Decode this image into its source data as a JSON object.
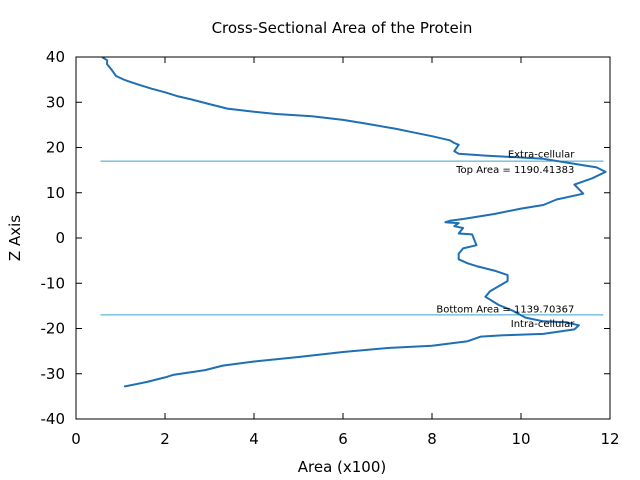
{
  "chart_data": {
    "type": "line",
    "title": "Cross-Sectional Area of the Protein",
    "xlabel": "Area (x100)",
    "ylabel": "Z Axis",
    "xlim": [
      0,
      12
    ],
    "ylim": [
      -40,
      40
    ],
    "xticks": [
      "0",
      "2",
      "4",
      "6",
      "8",
      "10",
      "12"
    ],
    "yticks": [
      "40",
      "30",
      "20",
      "10",
      "0",
      "-10",
      "-20",
      "-30",
      "-40"
    ],
    "grid": false,
    "line_color": "#1f6fb5",
    "ref_line_color": "#3aa3c9",
    "series": [
      {
        "x": [
          1.1,
          1.6,
          2.0,
          2.2,
          2.9,
          3.3,
          4.0,
          5.0,
          6.0,
          7.0,
          8.0,
          8.8,
          9.1,
          9.6,
          10.5,
          11.2,
          11.3,
          11.0,
          10.5,
          10.1,
          9.8,
          9.5,
          9.2,
          9.3,
          9.7,
          9.7,
          9.4,
          9.0,
          8.8,
          8.6,
          8.6,
          8.7,
          9.0,
          8.9,
          8.6,
          8.7,
          8.5,
          8.6,
          8.4,
          8.3,
          8.4,
          8.7,
          9.4,
          10.0,
          10.5,
          10.8,
          11.4,
          11.2,
          11.6,
          11.9,
          11.7,
          11.0,
          10.5,
          9.8,
          9.2,
          8.6,
          8.5,
          8.6,
          8.5,
          8.4,
          8.0,
          7.5,
          7.2,
          6.5,
          6.0,
          5.3,
          4.5,
          4.0,
          3.4,
          3.0,
          2.6,
          2.3,
          2.0,
          1.7,
          1.4,
          1.1,
          0.9,
          0.8,
          0.7,
          0.7,
          0.6
        ],
        "y": [
          -32.8,
          -31.8,
          -30.8,
          -30.2,
          -29.2,
          -28.2,
          -27.3,
          -26.3,
          -25.2,
          -24.3,
          -23.8,
          -22.8,
          -21.8,
          -21.5,
          -21.2,
          -20.2,
          -19.3,
          -18.6,
          -18.4,
          -17.6,
          -16.0,
          -14.8,
          -13.0,
          -11.8,
          -9.5,
          -8.2,
          -7.2,
          -6.2,
          -5.6,
          -4.7,
          -3.5,
          -2.3,
          -1.6,
          0.8,
          1.0,
          2.2,
          2.6,
          3.3,
          3.4,
          3.5,
          3.8,
          4.2,
          5.3,
          6.5,
          7.3,
          8.5,
          9.8,
          11.8,
          13.2,
          14.6,
          15.6,
          16.7,
          17.5,
          17.9,
          18.2,
          18.6,
          19.2,
          20.6,
          21.0,
          21.6,
          22.5,
          23.5,
          24.1,
          25.3,
          26.1,
          26.9,
          27.4,
          27.9,
          28.6,
          29.6,
          30.6,
          31.3,
          32.2,
          33.0,
          33.9,
          34.9,
          35.8,
          37.2,
          38.4,
          39.3,
          39.9
        ]
      }
    ],
    "reference_lines": [
      {
        "y": 17,
        "x_from": 0.55,
        "x_to": 11.85
      },
      {
        "y": -17,
        "x_from": 0.55,
        "x_to": 11.85
      }
    ],
    "annotations": [
      {
        "text": "Extra-cellular",
        "x": 11.2,
        "y": 18.5
      },
      {
        "text": "Top Area = 1190.41383",
        "x": 11.2,
        "y": 15.0
      },
      {
        "text": "Bottom Area = 1139.70367",
        "x": 11.2,
        "y": -15.8
      },
      {
        "text": "Intra-cellular",
        "x": 11.2,
        "y": -19.0
      }
    ]
  }
}
